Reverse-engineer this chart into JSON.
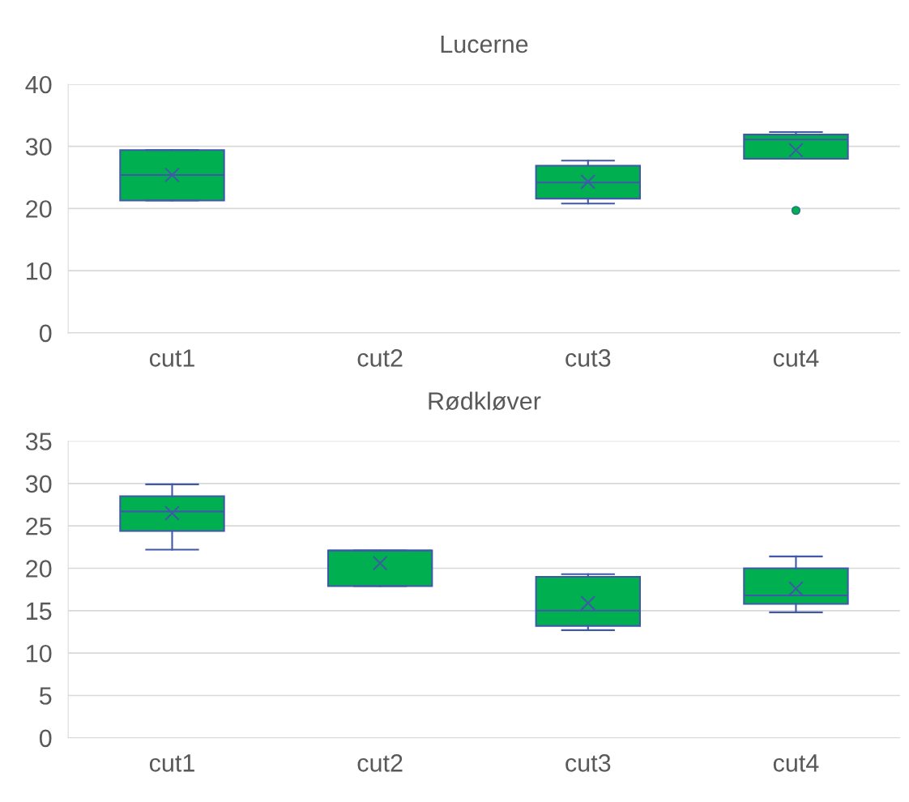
{
  "chart_data": [
    {
      "type": "box",
      "title": "Lucerne",
      "categories": [
        "cut1",
        "cut2",
        "cut3",
        "cut4"
      ],
      "color": "#00b050",
      "ylim": [
        0,
        40
      ],
      "yticks": [
        0,
        10,
        20,
        30,
        40
      ],
      "grid": "y",
      "boxes": [
        {
          "low": 21.3,
          "q1": 21.3,
          "median": 25.4,
          "q3": 29.4,
          "high": 29.4,
          "mean": 25.4
        },
        null,
        {
          "low": 20.8,
          "q1": 21.6,
          "median": 24.2,
          "q3": 26.9,
          "high": 27.7,
          "mean": 24.3
        },
        {
          "low": 28.0,
          "q1": 28.0,
          "median": 31.1,
          "q3": 31.9,
          "high": 32.3,
          "mean": 29.4,
          "outliers": [
            19.7
          ]
        }
      ]
    },
    {
      "type": "box",
      "title": "Rødkløver",
      "categories": [
        "cut1",
        "cut2",
        "cut3",
        "cut4"
      ],
      "color": "#00b050",
      "ylim": [
        0,
        35
      ],
      "yticks": [
        0,
        5,
        10,
        15,
        20,
        25,
        30,
        35
      ],
      "grid": "y",
      "boxes": [
        {
          "low": 22.2,
          "q1": 24.4,
          "median": 26.7,
          "q3": 28.5,
          "high": 29.9,
          "mean": 26.5
        },
        {
          "low": 17.9,
          "q1": 17.9,
          "median": 22.1,
          "q3": 22.1,
          "high": 22.1,
          "mean": 20.6
        },
        {
          "low": 12.7,
          "q1": 13.2,
          "median": 15.0,
          "q3": 19.0,
          "high": 19.3,
          "mean": 15.9
        },
        {
          "low": 14.8,
          "q1": 15.8,
          "median": 16.8,
          "q3": 20.0,
          "high": 21.4,
          "mean": 17.6
        }
      ]
    }
  ]
}
